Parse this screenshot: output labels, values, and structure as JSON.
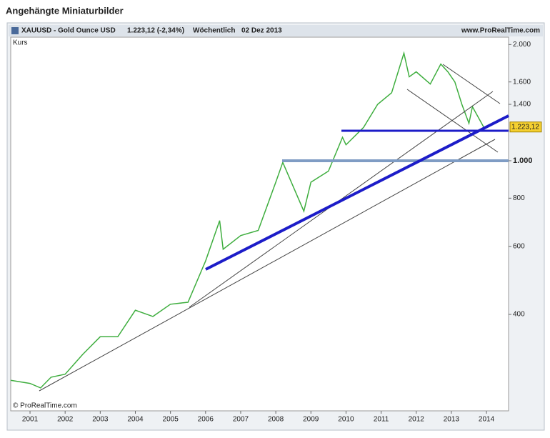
{
  "page_title": "Angehängte Miniaturbilder",
  "chart_data": {
    "type": "line",
    "title": "XAUUSD - Gold Ounce USD",
    "price_info": "1.223,12 (-2,34%)",
    "period": "Wöchentlich",
    "date": "02 Dez 2013",
    "source": "www.ProRealTime.com",
    "copyright": "© ProRealTime.com",
    "y_label": "Kurs",
    "last_label": "1.223,12",
    "log_scale": true,
    "grid": false,
    "x": [
      2000.45,
      2001.0,
      2001.3,
      2001.6,
      2002.0,
      2002.5,
      2003.0,
      2003.5,
      2004.0,
      2004.5,
      2005.0,
      2005.5,
      2006.0,
      2006.4,
      2006.5,
      2007.0,
      2007.5,
      2008.0,
      2008.2,
      2008.8,
      2009.0,
      2009.5,
      2009.9,
      2010.0,
      2010.5,
      2010.9,
      2011.3,
      2011.65,
      2011.8,
      2012.0,
      2012.4,
      2012.7,
      2012.9,
      2013.1,
      2013.3,
      2013.5,
      2013.6,
      2013.92
    ],
    "series": [
      {
        "name": "XAUUSD",
        "color": "#3fae3f",
        "values": [
          270,
          265,
          258,
          275,
          280,
          315,
          350,
          350,
          410,
          395,
          425,
          430,
          550,
          700,
          590,
          640,
          660,
          880,
          990,
          740,
          880,
          940,
          1150,
          1100,
          1220,
          1400,
          1500,
          1900,
          1650,
          1700,
          1580,
          1780,
          1700,
          1600,
          1400,
          1250,
          1380,
          1223.12
        ]
      }
    ],
    "xlim": [
      2000.45,
      2014.63
    ],
    "xticks": [
      2001,
      2002,
      2003,
      2004,
      2005,
      2006,
      2007,
      2008,
      2009,
      2010,
      2011,
      2012,
      2013,
      2014
    ],
    "ylim": [
      225,
      2090
    ],
    "yticks": [
      {
        "value": 2000,
        "label": "2.000"
      },
      {
        "value": 1600,
        "label": "1.600"
      },
      {
        "value": 1400,
        "label": "1.400"
      },
      {
        "value": 1000,
        "label": "1.000"
      },
      800,
      600,
      400
    ]
  }
}
